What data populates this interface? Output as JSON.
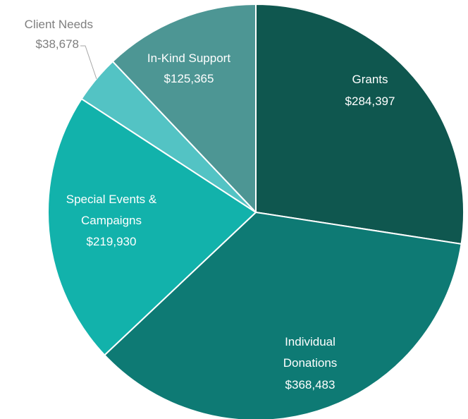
{
  "chart_data": {
    "type": "pie",
    "title": "",
    "slices": [
      {
        "label": "Grants",
        "display_value": "$284,397",
        "value": 284397,
        "color": "#0f574f"
      },
      {
        "label": "Individual Donations",
        "display_value": "$368,483",
        "value": 368483,
        "color": "#0e7a74"
      },
      {
        "label": "Special Events & Campaigns",
        "display_value": "$219,930",
        "value": 219930,
        "color": "#12b2ab"
      },
      {
        "label": "Client Needs",
        "display_value": "$38,678",
        "value": 38678,
        "color": "#53c3c4"
      },
      {
        "label": "In-Kind Support",
        "display_value": "$125,365",
        "value": 125365,
        "color": "#4d9694"
      }
    ],
    "start_angle_deg": 0,
    "direction": "clockwise",
    "legend": "none",
    "label_color_inside": "#ffffff",
    "label_color_outside": "#7f7f7f"
  }
}
